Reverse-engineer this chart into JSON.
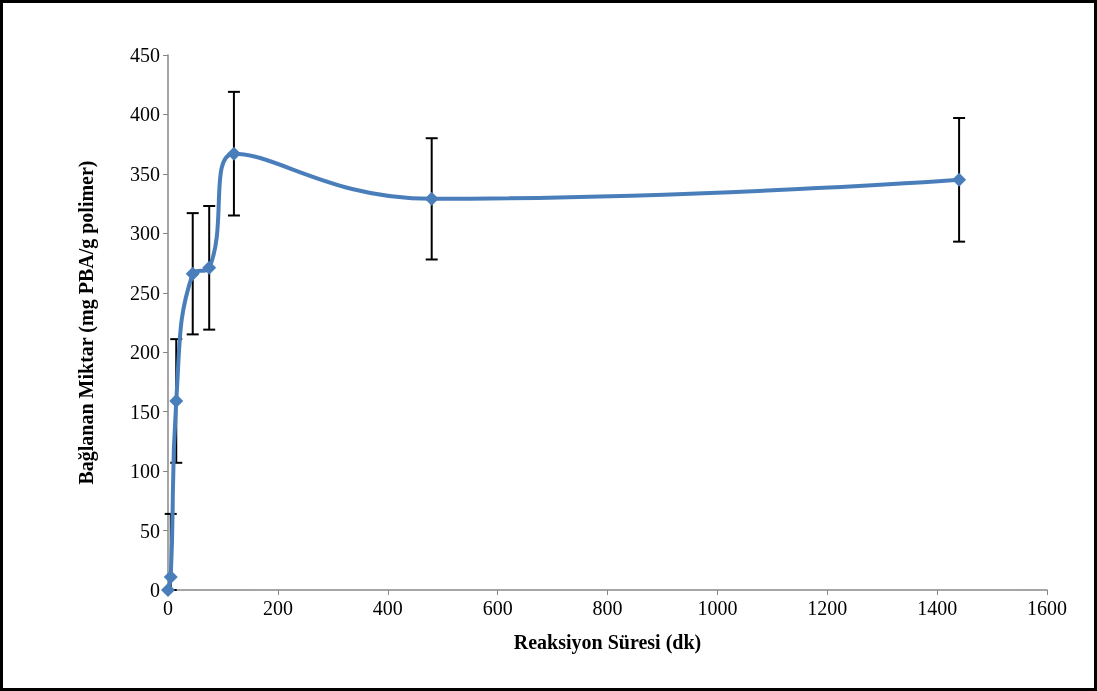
{
  "chart_data": {
    "type": "line",
    "xlabel": "Reaksiyon Süresi (dk)",
    "ylabel": "Bağlanan Miktar (mg PBA/g polimer)",
    "x": [
      0,
      5,
      15,
      45,
      75,
      120,
      480,
      1440
    ],
    "series": [
      {
        "color": "#4a7ebb",
        "values": [
          0,
          11,
          159,
          266,
          271,
          367,
          329,
          345
        ],
        "errors": [
          null,
          [
            0,
            64
          ],
          52,
          51,
          52,
          52,
          51,
          52
        ]
      }
    ],
    "xlim": [
      0,
      1600
    ],
    "xticks": [
      0,
      200,
      400,
      600,
      800,
      1000,
      1200,
      1400,
      1600
    ],
    "ylim": [
      0,
      450
    ],
    "yticks": [
      0,
      50,
      100,
      150,
      200,
      250,
      300,
      350,
      400,
      450
    ],
    "grid": false,
    "marker": "diamond",
    "line_style": "solid"
  }
}
